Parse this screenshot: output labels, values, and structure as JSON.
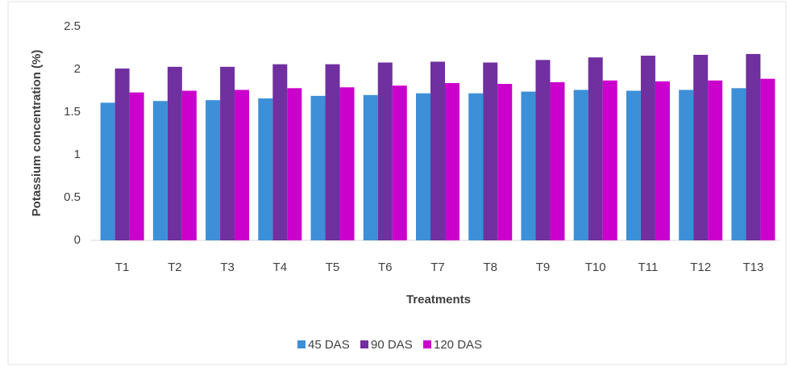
{
  "chart_data": {
    "type": "bar",
    "x_label": "Treatments",
    "y_label": "Potassium concentration (%)",
    "categories": [
      "T1",
      "T2",
      "T3",
      "T4",
      "T5",
      "T6",
      "T7",
      "T8",
      "T9",
      "T10",
      "T11",
      "T12",
      "T13"
    ],
    "series": [
      {
        "name": "45 DAS",
        "color": "#3d8fd8",
        "values": [
          1.61,
          1.63,
          1.64,
          1.66,
          1.69,
          1.7,
          1.72,
          1.72,
          1.74,
          1.76,
          1.75,
          1.76,
          1.78
        ]
      },
      {
        "name": "90 DAS",
        "color": "#7030a0",
        "values": [
          2.01,
          2.03,
          2.03,
          2.06,
          2.06,
          2.08,
          2.09,
          2.08,
          2.11,
          2.14,
          2.16,
          2.17,
          2.18
        ]
      },
      {
        "name": "120 DAS",
        "color": "#cc00cc",
        "values": [
          1.73,
          1.75,
          1.76,
          1.78,
          1.79,
          1.81,
          1.84,
          1.83,
          1.85,
          1.87,
          1.86,
          1.87,
          1.89
        ]
      }
    ],
    "ylim": [
      0,
      2.5
    ],
    "yticks": [
      0,
      0.5,
      1,
      1.5,
      2,
      2.5
    ],
    "grid": false,
    "legend": "bottom"
  }
}
